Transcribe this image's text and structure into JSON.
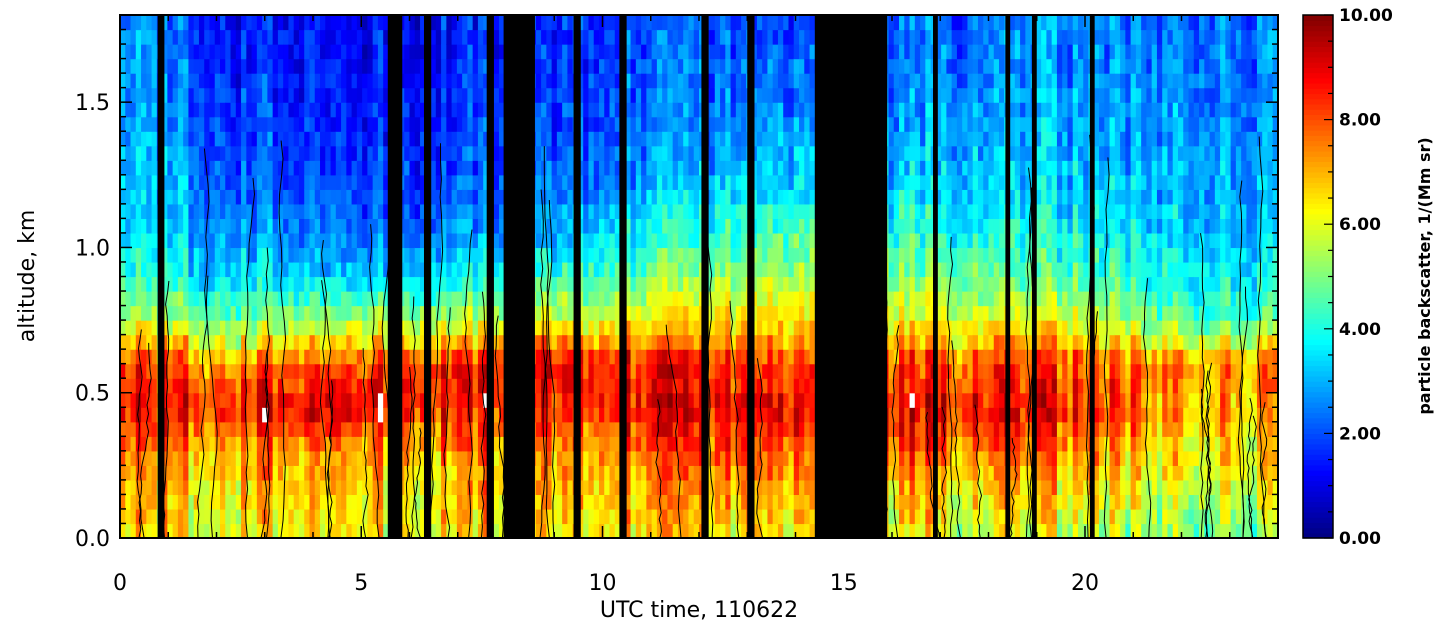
{
  "chart_data": {
    "type": "heatmap",
    "title": "",
    "xlabel": "UTC time, 110622",
    "ylabel": "altitude, km",
    "colorbar_label": "particle backscatter, 1/(Mm sr)",
    "xlim": [
      0,
      24
    ],
    "ylim": [
      0.0,
      1.8
    ],
    "x_ticks": [
      0,
      5,
      10,
      15,
      20
    ],
    "x_tick_labels": [
      "0",
      "5",
      "10",
      "15",
      "20"
    ],
    "y_ticks": [
      0.0,
      0.5,
      1.0,
      1.5
    ],
    "y_tick_labels": [
      "0.0",
      "0.5",
      "1.0",
      "1.5"
    ],
    "colorbar_range": [
      0.0,
      10.0
    ],
    "colorbar_ticks": [
      0,
      2,
      4,
      6,
      8,
      10
    ],
    "colorbar_tick_labels": [
      "0.00",
      "2.00",
      "4.00",
      "6.00",
      "8.00",
      "10.00"
    ],
    "colormap": [
      "#00007f",
      "#0000ff",
      "#007fff",
      "#00ffff",
      "#7fff7f",
      "#ffff00",
      "#ff7f00",
      "#ff0000",
      "#7f0000"
    ],
    "mask_color": "#000000",
    "saturated_color": "#ffffff",
    "black_time_bands": [
      [
        0.78,
        0.92
      ],
      [
        5.55,
        5.85
      ],
      [
        6.3,
        6.45
      ],
      [
        7.6,
        7.75
      ],
      [
        7.95,
        8.6
      ],
      [
        9.4,
        9.55
      ],
      [
        10.35,
        10.5
      ],
      [
        12.05,
        12.2
      ],
      [
        13.0,
        13.15
      ],
      [
        14.4,
        15.9
      ],
      [
        16.85,
        16.95
      ],
      [
        18.35,
        18.45
      ],
      [
        18.9,
        19.0
      ],
      [
        20.1,
        20.2
      ]
    ],
    "profiles_altitude_km": [
      0.0,
      0.15,
      0.3,
      0.45,
      0.6,
      0.75,
      0.9,
      1.05,
      1.2,
      1.35,
      1.5,
      1.65,
      1.8
    ],
    "profiles": [
      {
        "utc_hour": 0.5,
        "backscatter": [
          6.5,
          6.8,
          7.5,
          8.5,
          8.0,
          5.5,
          4.0,
          3.5,
          3.2,
          3.0,
          2.8,
          2.6,
          2.5
        ]
      },
      {
        "utc_hour": 2.5,
        "backscatter": [
          6.3,
          6.6,
          7.2,
          8.8,
          7.5,
          5.0,
          3.5,
          2.8,
          2.3,
          2.0,
          1.8,
          1.6,
          1.5
        ]
      },
      {
        "utc_hour": 4.5,
        "backscatter": [
          6.0,
          6.5,
          7.0,
          9.0,
          7.8,
          5.2,
          3.0,
          2.2,
          1.8,
          1.5,
          1.3,
          1.2,
          1.2
        ]
      },
      {
        "utc_hour": 9.0,
        "backscatter": [
          6.8,
          7.0,
          7.5,
          8.5,
          9.2,
          6.0,
          4.5,
          3.0,
          2.5,
          2.2,
          2.0,
          1.8,
          1.8
        ]
      },
      {
        "utc_hour": 11.0,
        "backscatter": [
          6.5,
          7.0,
          7.8,
          8.8,
          8.5,
          6.2,
          4.8,
          3.8,
          3.0,
          2.5,
          2.3,
          2.2,
          2.0
        ]
      },
      {
        "utc_hour": 13.8,
        "backscatter": [
          6.5,
          7.0,
          8.0,
          9.0,
          8.0,
          6.5,
          5.5,
          4.5,
          3.5,
          3.0,
          2.5,
          2.3,
          2.0
        ]
      },
      {
        "utc_hour": 19.5,
        "backscatter": [
          5.5,
          6.5,
          7.5,
          8.5,
          8.0,
          6.0,
          4.5,
          3.8,
          3.3,
          3.0,
          2.8,
          2.6,
          2.5
        ]
      },
      {
        "utc_hour": 22.5,
        "backscatter": [
          5.0,
          5.8,
          6.5,
          7.0,
          7.5,
          4.5,
          3.8,
          3.3,
          3.0,
          2.8,
          2.6,
          2.5,
          2.4
        ]
      }
    ]
  }
}
